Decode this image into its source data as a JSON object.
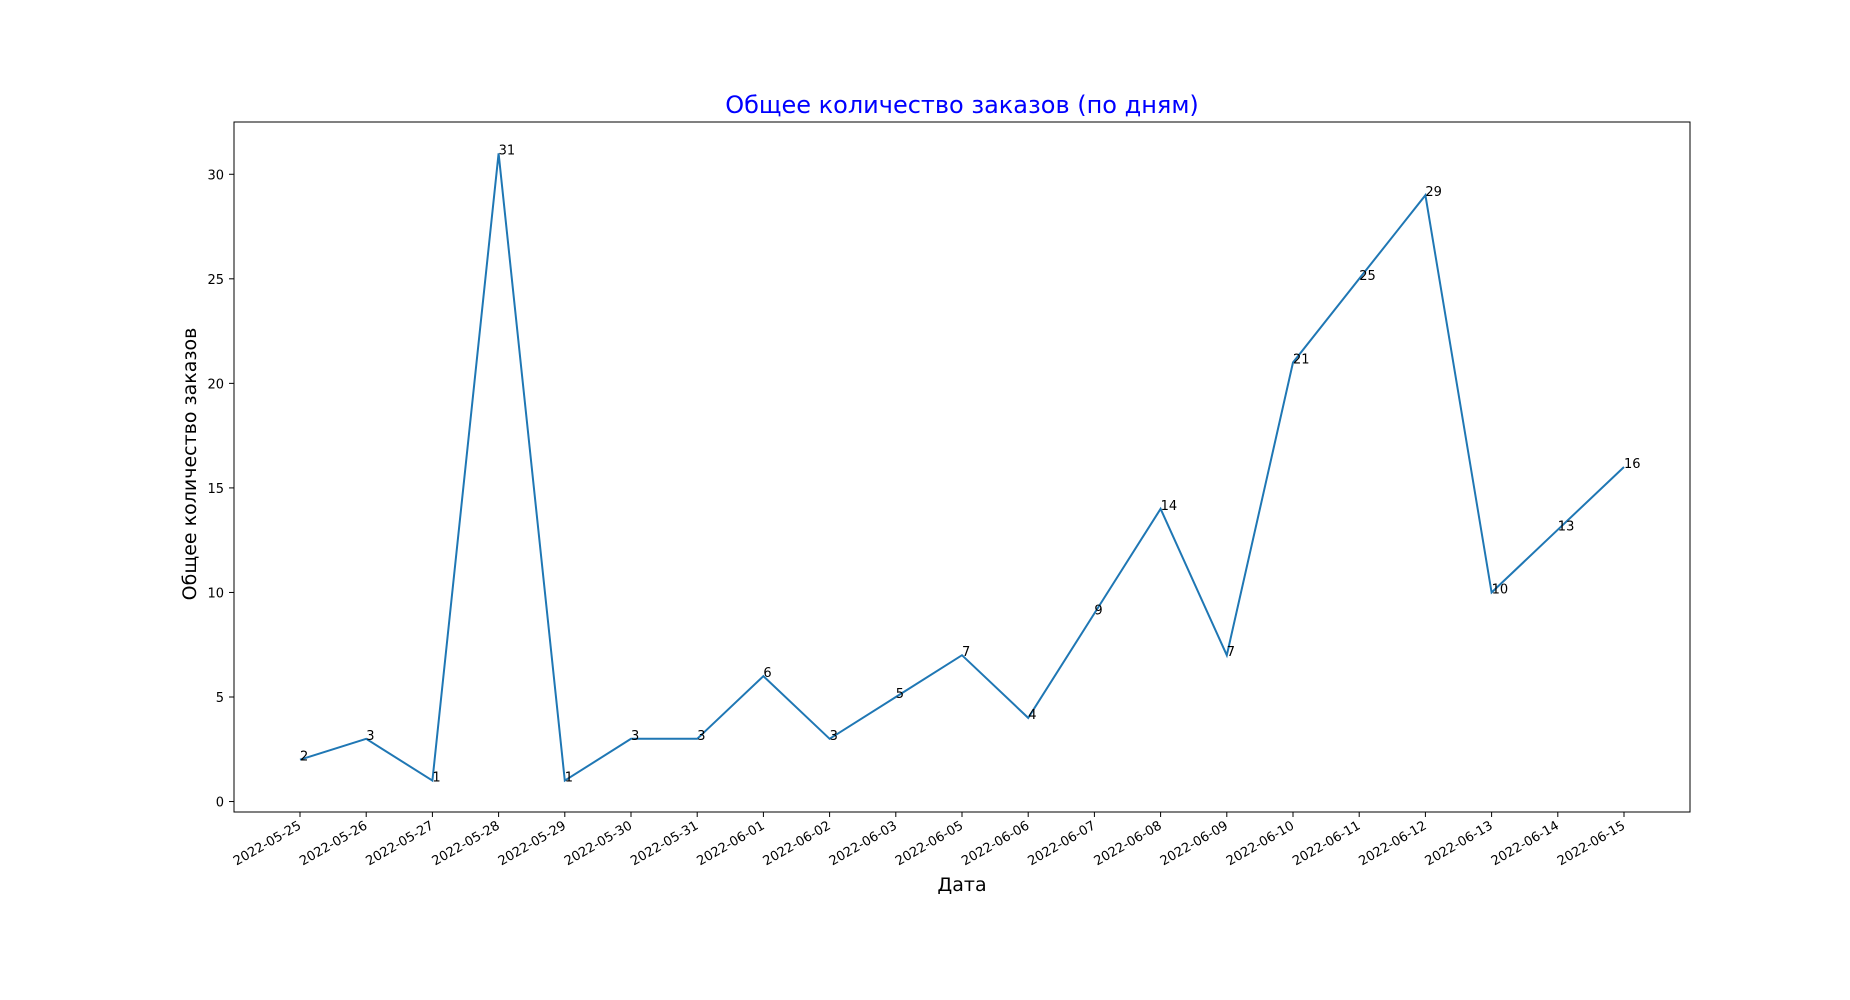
{
  "chart_data": {
    "type": "line",
    "title": "Общее количество заказов (по дням)",
    "title_color": "#0000ff",
    "xlabel": "Дата",
    "ylabel": "Общее количество заказов",
    "line_color": "#1f77b4",
    "ylim": [
      -0.5,
      32.5
    ],
    "yticks": [
      0,
      5,
      10,
      15,
      20,
      25,
      30
    ],
    "grid": false,
    "x": [
      "2022-05-25",
      "2022-05-26",
      "2022-05-27",
      "2022-05-28",
      "2022-05-29",
      "2022-05-30",
      "2022-05-31",
      "2022-06-01",
      "2022-06-02",
      "2022-06-03",
      "2022-06-05",
      "2022-06-06",
      "2022-06-07",
      "2022-06-08",
      "2022-06-09",
      "2022-06-10",
      "2022-06-11",
      "2022-06-12",
      "2022-06-13",
      "2022-06-14",
      "2022-06-15"
    ],
    "values": [
      2,
      3,
      1,
      31,
      1,
      3,
      3,
      6,
      3,
      5,
      7,
      4,
      9,
      14,
      7,
      21,
      25,
      29,
      10,
      13,
      16
    ],
    "data_labels": [
      "2",
      "3",
      "1",
      "31",
      "1",
      "3",
      "3",
      "6",
      "3",
      "5",
      "7",
      "4",
      "9",
      "14",
      "7",
      "21",
      "25",
      "29",
      "10",
      "13",
      "16"
    ]
  }
}
